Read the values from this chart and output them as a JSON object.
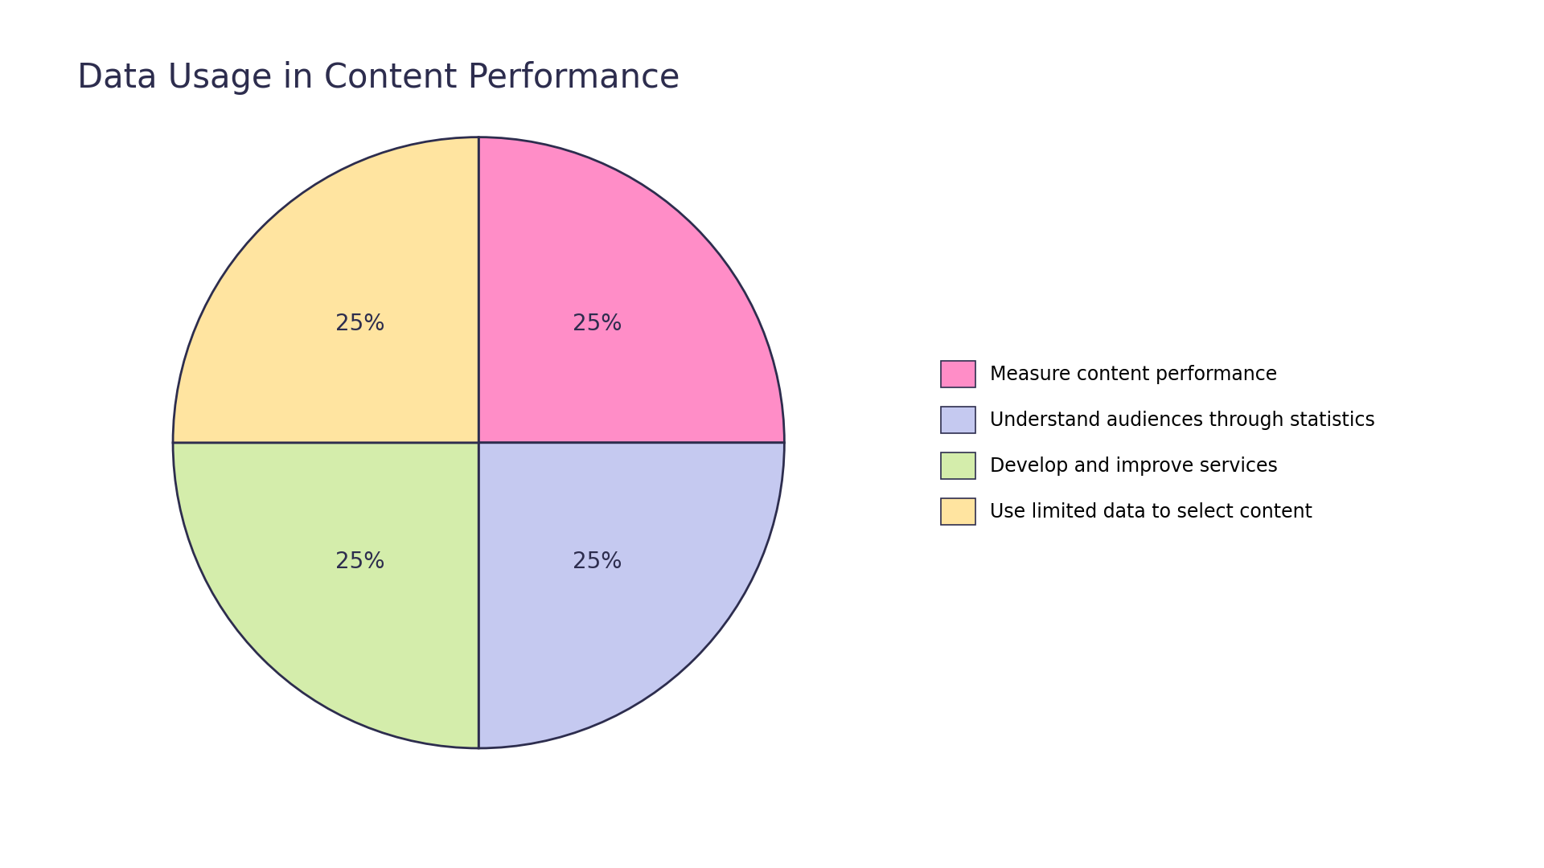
{
  "title": "Data Usage in Content Performance",
  "slices": [
    25,
    25,
    25,
    25
  ],
  "labels": [
    "Measure content performance",
    "Understand audiences through statistics",
    "Develop and improve services",
    "Use limited data to select content"
  ],
  "colors": [
    "#FF8DC7",
    "#C5C9F0",
    "#D4EDAB",
    "#FFE4A0"
  ],
  "edge_color": "#2d2d4e",
  "edge_width": 2.0,
  "pct_labels": [
    "25%",
    "25%",
    "25%",
    "25%"
  ],
  "background_color": "#ffffff",
  "title_fontsize": 30,
  "pct_fontsize": 20,
  "legend_fontsize": 17,
  "start_angle": 90
}
